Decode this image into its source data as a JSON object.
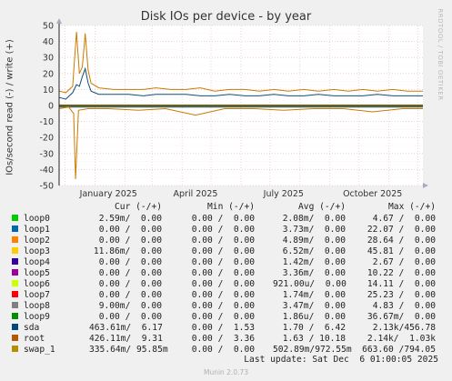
{
  "title": "Disk IOs per device - by year",
  "ylabel": "IOs/second read (-) / write (+)",
  "side_tag": "RRDTOOL / TOBI OETIKER",
  "munin_version": "Munin 2.0.73",
  "last_update": "Last update: Sat Dec  6 01:00:05 2025",
  "legend_headers": {
    "cur": "Cur (-/+)",
    "min": "Min (-/+)",
    "avg": "Avg (-/+)",
    "max": "Max (-/+)"
  },
  "chart_data": {
    "type": "line",
    "title": "Disk IOs per device - by year",
    "ylabel": "IOs/second read (-) / write (+)",
    "ylim": [
      -50,
      50
    ],
    "yticks": [
      -50,
      -40,
      -30,
      -20,
      -10,
      0,
      10,
      20,
      30,
      40,
      50
    ],
    "xlim": [
      "2024-11-25",
      "2025-12-06"
    ],
    "x_ticks": [
      {
        "label": "January 2025",
        "date": "2025-01-15"
      },
      {
        "label": "April 2025",
        "date": "2025-04-15"
      },
      {
        "label": "July 2025",
        "date": "2025-07-15"
      },
      {
        "label": "October 2025",
        "date": "2025-10-15"
      }
    ],
    "grid": true,
    "series": [
      {
        "name": "root",
        "color": "#cc7a00",
        "write": {
          "x": [
            "2024-11-25",
            "2024-12-02",
            "2024-12-09",
            "2024-12-13",
            "2024-12-16",
            "2024-12-19",
            "2024-12-22",
            "2024-12-25",
            "2024-12-28",
            "2025-01-05",
            "2025-01-20",
            "2025-02-05",
            "2025-02-20",
            "2025-03-05",
            "2025-03-20",
            "2025-04-05",
            "2025-04-20",
            "2025-05-05",
            "2025-05-20",
            "2025-06-05",
            "2025-06-20",
            "2025-07-05",
            "2025-07-20",
            "2025-08-05",
            "2025-08-20",
            "2025-09-05",
            "2025-09-20",
            "2025-10-05",
            "2025-10-20",
            "2025-11-05",
            "2025-11-20",
            "2025-12-06"
          ],
          "y": [
            9,
            8,
            12,
            46,
            20,
            24,
            45,
            22,
            14,
            11,
            10,
            10,
            10,
            11,
            10,
            10,
            11,
            9,
            10,
            10,
            9,
            10,
            9,
            10,
            9,
            10,
            9,
            10,
            9,
            10,
            9,
            9
          ]
        },
        "read": {
          "x": [
            "2024-11-25",
            "2024-12-05",
            "2024-12-10",
            "2024-12-12",
            "2024-12-15",
            "2024-12-25",
            "2025-01-15",
            "2025-02-15",
            "2025-03-15",
            "2025-04-15",
            "2025-05-15",
            "2025-06-15",
            "2025-07-15",
            "2025-08-15",
            "2025-09-15",
            "2025-10-15",
            "2025-11-15",
            "2025-12-06"
          ],
          "y": [
            -2,
            -1,
            -5,
            -46,
            -3,
            -2,
            -2,
            -3,
            -2,
            -6,
            -2,
            -2,
            -3,
            -2,
            -2,
            -4,
            -2,
            -2
          ]
        }
      },
      {
        "name": "sda",
        "color": "#0f4f7a",
        "write": {
          "x": [
            "2024-11-25",
            "2024-12-02",
            "2024-12-09",
            "2024-12-13",
            "2024-12-16",
            "2024-12-19",
            "2024-12-22",
            "2024-12-25",
            "2024-12-28",
            "2025-01-05",
            "2025-01-20",
            "2025-02-05",
            "2025-02-20",
            "2025-03-05",
            "2025-03-20",
            "2025-04-05",
            "2025-04-20",
            "2025-05-05",
            "2025-05-20",
            "2025-06-05",
            "2025-06-20",
            "2025-07-05",
            "2025-07-20",
            "2025-08-05",
            "2025-08-20",
            "2025-09-05",
            "2025-09-20",
            "2025-10-05",
            "2025-10-20",
            "2025-11-05",
            "2025-11-20",
            "2025-12-06"
          ],
          "y": [
            5,
            4,
            8,
            13,
            12,
            18,
            23,
            14,
            9,
            7,
            7,
            7,
            6,
            7,
            7,
            7,
            6,
            6,
            7,
            6,
            6,
            7,
            6,
            6,
            7,
            6,
            6,
            6,
            7,
            6,
            6,
            6
          ]
        },
        "read": {
          "x": [
            "2024-11-25",
            "2025-03-01",
            "2025-07-01",
            "2025-12-06"
          ],
          "y": [
            -1,
            -1,
            -1,
            -1
          ]
        }
      },
      {
        "name": "swap_1",
        "color": "#b8a000",
        "write": {
          "x": [
            "2024-11-25",
            "2025-03-01",
            "2025-07-01",
            "2025-12-06"
          ],
          "y": [
            0.3,
            0.3,
            0.3,
            0.3
          ]
        },
        "read": {
          "x": [
            "2024-11-25",
            "2025-03-01",
            "2025-07-01",
            "2025-12-06"
          ],
          "y": [
            -0.5,
            -0.5,
            -0.5,
            -0.5
          ]
        }
      }
    ]
  },
  "legend": [
    {
      "name": "loop0",
      "color": "#00cc00",
      "cur": "2.59m/  0.00",
      "min": "0.00 /  0.00",
      "avg": "2.08m/  0.00",
      "max": "4.67 /  0.00"
    },
    {
      "name": "loop1",
      "color": "#0066b3",
      "cur": "0.00 /  0.00",
      "min": "0.00 /  0.00",
      "avg": "3.73m/  0.00",
      "max": "22.07 /  0.00"
    },
    {
      "name": "loop2",
      "color": "#ff8000",
      "cur": "0.00 /  0.00",
      "min": "0.00 /  0.00",
      "avg": "4.89m/  0.00",
      "max": "28.64 /  0.00"
    },
    {
      "name": "loop3",
      "color": "#ffcc00",
      "cur": "11.86m/  0.00",
      "min": "0.00 /  0.00",
      "avg": "6.52m/  0.00",
      "max": "45.81 /  0.00"
    },
    {
      "name": "loop4",
      "color": "#330099",
      "cur": "0.00 /  0.00",
      "min": "0.00 /  0.00",
      "avg": "1.42m/  0.00",
      "max": "2.67 /  0.00"
    },
    {
      "name": "loop5",
      "color": "#990099",
      "cur": "0.00 /  0.00",
      "min": "0.00 /  0.00",
      "avg": "3.36m/  0.00",
      "max": "10.22 /  0.00"
    },
    {
      "name": "loop6",
      "color": "#ccff00",
      "cur": "0.00 /  0.00",
      "min": "0.00 /  0.00",
      "avg": "921.00u/  0.00",
      "max": "14.11 /  0.00"
    },
    {
      "name": "loop7",
      "color": "#ff0000",
      "cur": "0.00 /  0.00",
      "min": "0.00 /  0.00",
      "avg": "1.74m/  0.00",
      "max": "25.23 /  0.00"
    },
    {
      "name": "loop8",
      "color": "#808080",
      "cur": "9.00m/  0.00",
      "min": "0.00 /  0.00",
      "avg": "3.47m/  0.00",
      "max": "4.83 /  0.00"
    },
    {
      "name": "loop9",
      "color": "#008f00",
      "cur": "0.00 /  0.00",
      "min": "0.00 /  0.00",
      "avg": "1.86u/  0.00",
      "max": "36.67m/  0.00"
    },
    {
      "name": "sda",
      "color": "#00487d",
      "cur": "463.61m/  6.17",
      "min": "0.00 /  1.53",
      "avg": "1.70 /  6.42",
      "max": "2.13k/456.78"
    },
    {
      "name": "root",
      "color": "#b35a00",
      "cur": "426.11m/  9.31",
      "min": "0.00 /  3.36",
      "avg": "1.63 / 10.18",
      "max": "2.14k/  1.03k"
    },
    {
      "name": "swap_1",
      "color": "#b38f00",
      "cur": "335.64m/ 95.85m",
      "min": "0.00 /  0.00",
      "avg": "502.89m/972.55m",
      "max": "663.60 /794.05"
    }
  ]
}
